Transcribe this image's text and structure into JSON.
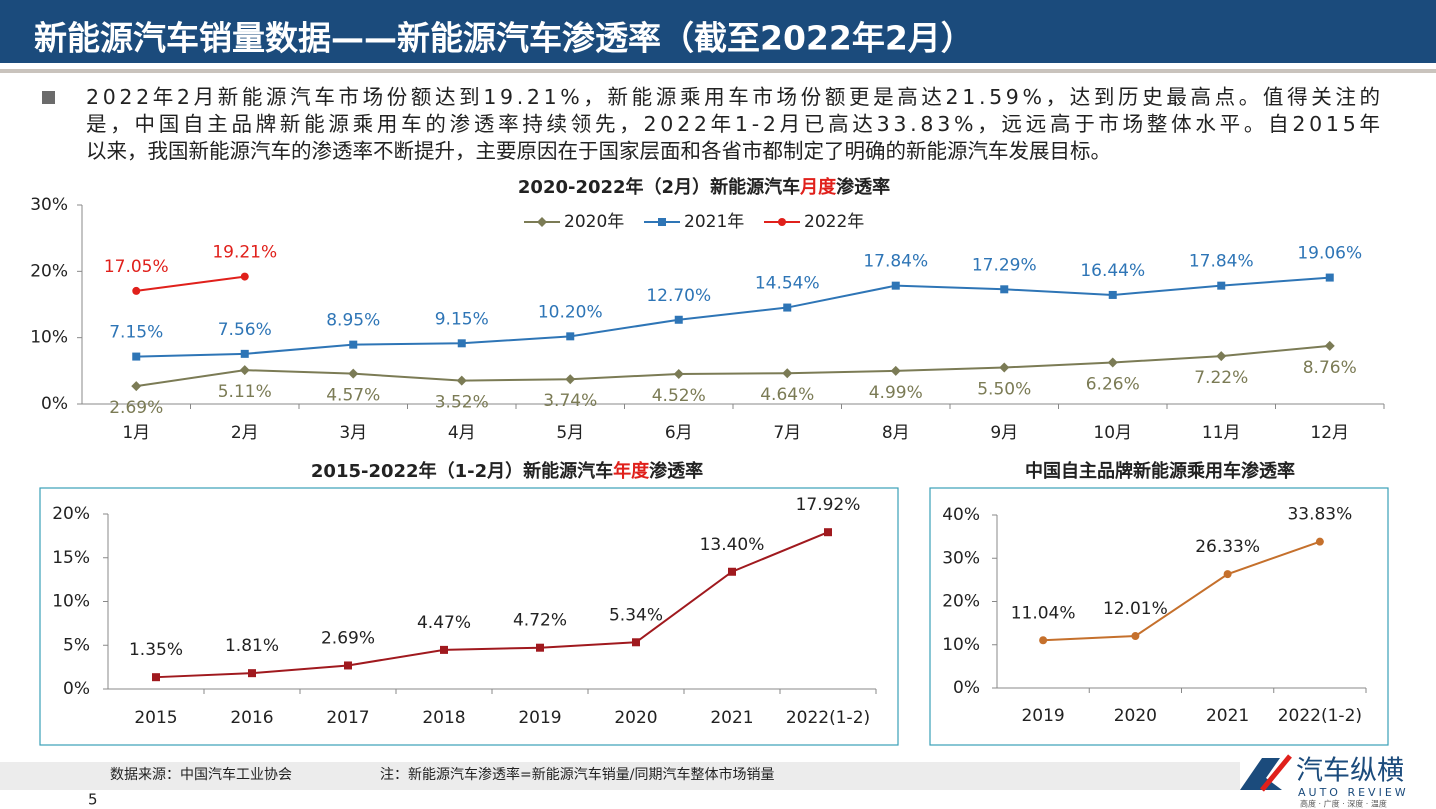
{
  "header": {
    "title": "新能源汽车销量数据——新能源汽车渗透率（截至2022年2月）"
  },
  "bullet_lines": [
    "2022年2月新能源汽车市场份额达到19.21%，新能源乘用车市场份额更是高达21.59%，达到历史最高点。值得关注的",
    "是，中国自主品牌新能源乘用车的渗透率持续领先，2022年1-2月已高达33.83%，远远高于市场整体水平。自2015年",
    "以来，我国新能源汽车的渗透率不断提升，主要原因在于国家层面和各省市都制定了明确的新能源汽车发展目标。"
  ],
  "footer": {
    "source": "数据来源：中国汽车工业协会",
    "note": "注：新能源汽车渗透率=新能源汽车销量/同期汽车整体市场销量",
    "page": "5"
  },
  "logo": {
    "name": "汽车纵横",
    "english": "AUTO REVIEW",
    "slogan": "高度 · 广度 · 深度 · 温度"
  },
  "chart_data": [
    {
      "type": "line",
      "title": "2020-2022年（2月）新能源汽车月度渗透率",
      "title_emphasis": "月度",
      "title_emphasis_color": "#e0201b",
      "categories": [
        "1月",
        "2月",
        "3月",
        "4月",
        "5月",
        "6月",
        "7月",
        "8月",
        "9月",
        "10月",
        "11月",
        "12月"
      ],
      "series": [
        {
          "name": "2020年",
          "color": "#7b7b55",
          "marker": "diamond",
          "values": [
            2.69,
            5.11,
            4.57,
            3.52,
            3.74,
            4.52,
            4.64,
            4.99,
            5.5,
            6.26,
            7.22,
            8.76
          ],
          "value_labels": [
            "2.69%",
            "5.11%",
            "4.57%",
            "3.52%",
            "3.74%",
            "4.52%",
            "4.64%",
            "4.99%",
            "5.50%",
            "6.26%",
            "7.22%",
            "8.76%"
          ]
        },
        {
          "name": "2021年",
          "color": "#2e75b6",
          "marker": "square",
          "values": [
            7.15,
            7.56,
            8.95,
            9.15,
            10.2,
            12.7,
            14.54,
            17.84,
            17.29,
            16.44,
            17.84,
            19.06
          ],
          "value_labels": [
            "7.15%",
            "7.56%",
            "8.95%",
            "9.15%",
            "10.20%",
            "12.70%",
            "14.54%",
            "17.84%",
            "17.29%",
            "16.44%",
            "17.84%",
            "19.06%"
          ]
        },
        {
          "name": "2022年",
          "color": "#e0201b",
          "marker": "circle",
          "values": [
            17.05,
            19.21,
            null,
            null,
            null,
            null,
            null,
            null,
            null,
            null,
            null,
            null
          ],
          "value_labels": [
            "17.05%",
            "19.21%",
            null,
            null,
            null,
            null,
            null,
            null,
            null,
            null,
            null,
            null
          ]
        }
      ],
      "ylim": [
        0,
        30
      ],
      "yticks": [
        {
          "value": 0,
          "label": "0%"
        },
        {
          "value": 10,
          "label": "10%"
        },
        {
          "value": 20,
          "label": "20%"
        },
        {
          "value": 30,
          "label": "30%"
        }
      ],
      "legend": "top",
      "grid": false
    },
    {
      "type": "line",
      "title": "2015-2022年（1-2月）新能源汽车年度渗透率",
      "title_emphasis": "年度",
      "title_emphasis_color": "#e0201b",
      "categories": [
        "2015",
        "2016",
        "2017",
        "2018",
        "2019",
        "2020",
        "2021",
        "2022(1-2)"
      ],
      "color": "#a0191e",
      "marker": "square",
      "values": [
        1.35,
        1.81,
        2.69,
        4.47,
        4.72,
        5.34,
        13.4,
        17.92
      ],
      "value_labels": [
        "1.35%",
        "1.81%",
        "2.69%",
        "4.47%",
        "4.72%",
        "5.34%",
        "13.40%",
        "17.92%"
      ],
      "ylim": [
        0,
        20
      ],
      "yticks": [
        {
          "value": 0,
          "label": "0%"
        },
        {
          "value": 5,
          "label": "5%"
        },
        {
          "value": 10,
          "label": "10%"
        },
        {
          "value": 15,
          "label": "15%"
        },
        {
          "value": 20,
          "label": "20%"
        }
      ],
      "grid": false
    },
    {
      "type": "line",
      "title": "中国自主品牌新能源乘用车渗透率",
      "categories": [
        "2019",
        "2020",
        "2021",
        "2022(1-2)"
      ],
      "color": "#c5702c",
      "marker": "circle",
      "values": [
        11.04,
        12.01,
        26.33,
        33.83
      ],
      "value_labels": [
        "11.04%",
        "12.01%",
        "26.33%",
        "33.83%"
      ],
      "ylim": [
        0,
        40
      ],
      "yticks": [
        {
          "value": 0,
          "label": "0%"
        },
        {
          "value": 10,
          "label": "10%"
        },
        {
          "value": 20,
          "label": "20%"
        },
        {
          "value": 30,
          "label": "30%"
        },
        {
          "value": 40,
          "label": "40%"
        }
      ],
      "grid": false
    }
  ]
}
